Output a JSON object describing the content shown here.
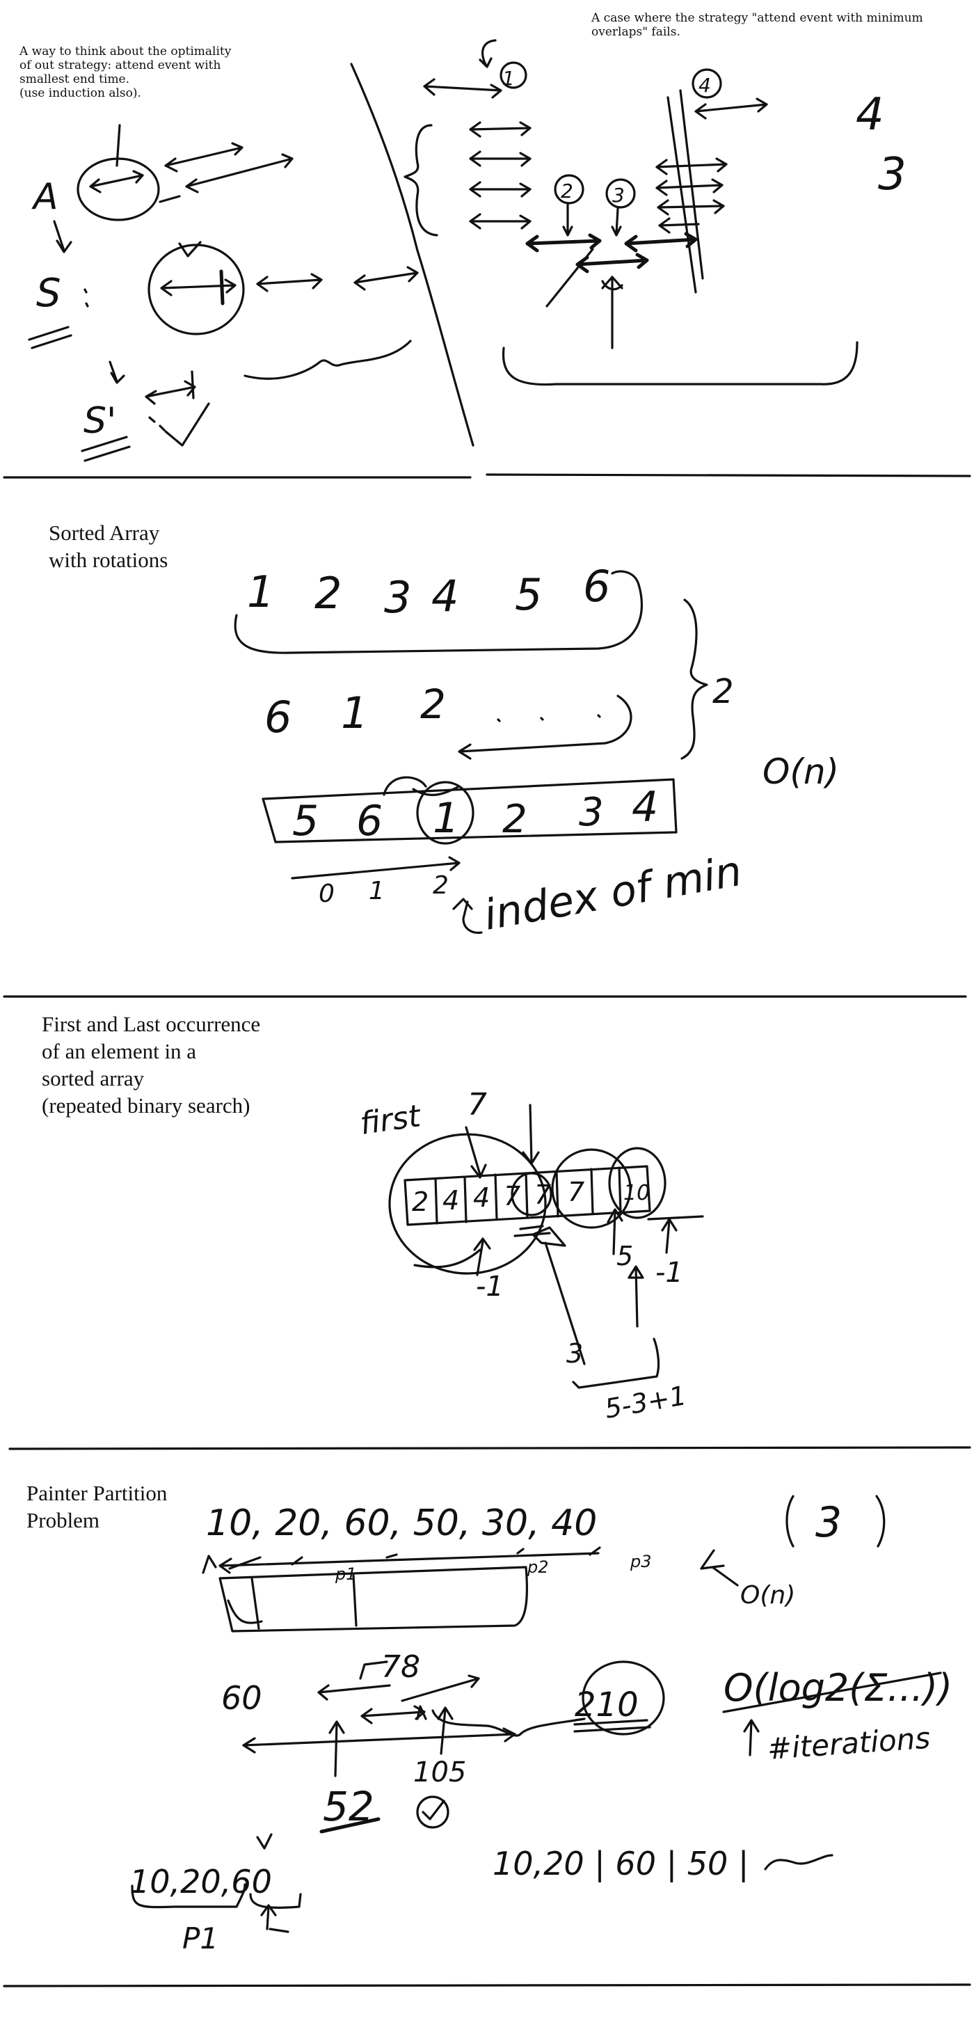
{
  "sections": [
    {
      "id": "interval-scheduling",
      "notes": [
        "A way to think about the optimality\nof out strategy: attend event with\nsmallest end time.\n(use induction also).",
        "A case where the strategy \"attend event with minimum\noverlaps\" fails."
      ],
      "handwritten": {
        "left_labels": [
          "A",
          "S",
          "S'"
        ],
        "circled_numbers": [
          "1",
          "2",
          "3",
          "4"
        ],
        "right_numbers": [
          "4",
          "3"
        ]
      }
    },
    {
      "id": "sorted-array-rotations",
      "heading": "Sorted Array\nwith rotations",
      "handwritten": {
        "row1": [
          "1",
          "2",
          "3",
          "4",
          "5",
          "6"
        ],
        "row2": [
          "6",
          "1",
          "2"
        ],
        "row3": [
          "5",
          "6",
          "1",
          "2",
          "3",
          "4"
        ],
        "indices": [
          "0",
          "1",
          "2"
        ],
        "brace_label": "2",
        "complexity": "O(n)",
        "note": "index of min"
      }
    },
    {
      "id": "first-last-occurrence",
      "heading": "First and Last occurrence\nof an element in a\nsorted array\n(repeated binary search)",
      "handwritten": {
        "first_label": "first",
        "first_value": "7",
        "array": [
          "2",
          "4",
          "4",
          "7",
          "7",
          "7",
          "10"
        ],
        "markers": [
          "-1",
          "5",
          "-1",
          "3",
          "5-3+1"
        ]
      }
    },
    {
      "id": "painter-partition",
      "heading": "Painter Partition\nProblem",
      "handwritten": {
        "boards": "10, 20, 60, 50, 30, 40",
        "partitions": [
          "p1",
          "p2",
          "p3"
        ],
        "painters": "3",
        "complexity": "O(n)",
        "log_note": "O(log2(Σ...))",
        "iterations": "#iterations",
        "range_low": "60",
        "range_high": "210",
        "values": [
          "78",
          "105",
          "52"
        ],
        "split": "10,20 | 60 | 50 |",
        "group": "10,20,60",
        "group_label": "P1"
      }
    }
  ]
}
